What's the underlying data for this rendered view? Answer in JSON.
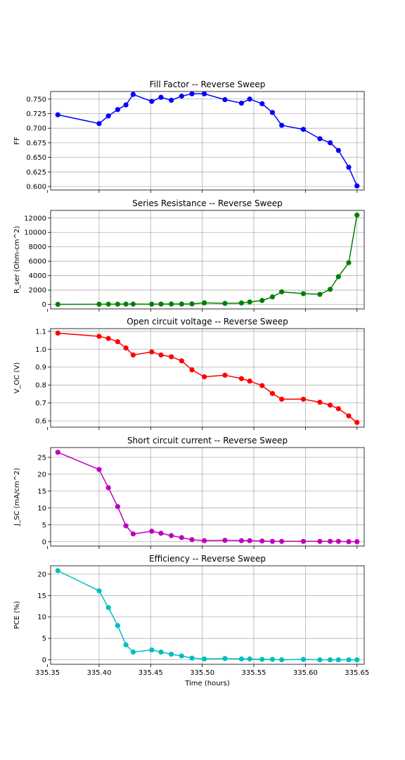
{
  "chart_data": [
    {
      "type": "line",
      "title": "Fill Factor -- Reverse Sweep",
      "ylabel": "FF",
      "xlabel": "",
      "color": "#0000ff",
      "xlim": [
        335.353,
        335.657
      ],
      "ylim": [
        0.594,
        0.763
      ],
      "xticks": [
        335.35,
        335.4,
        335.45,
        335.5,
        335.55,
        335.6,
        335.65
      ],
      "yticks": [
        0.6,
        0.625,
        0.65,
        0.675,
        0.7,
        0.725,
        0.75
      ],
      "ytick_labels": [
        "0.600",
        "0.625",
        "0.650",
        "0.675",
        "0.700",
        "0.725",
        "0.750"
      ],
      "grid": true,
      "show_xtick_labels": false,
      "x": [
        335.36,
        335.4,
        335.409,
        335.418,
        335.426,
        335.433,
        335.451,
        335.46,
        335.47,
        335.48,
        335.49,
        335.502,
        335.522,
        335.538,
        335.546,
        335.558,
        335.568,
        335.577,
        335.598,
        335.614,
        335.624,
        335.632,
        335.642,
        335.65
      ],
      "y": [
        0.723,
        0.708,
        0.721,
        0.732,
        0.74,
        0.758,
        0.746,
        0.753,
        0.748,
        0.755,
        0.759,
        0.759,
        0.749,
        0.743,
        0.75,
        0.742,
        0.727,
        0.705,
        0.698,
        0.682,
        0.675,
        0.662,
        0.633,
        0.601
      ]
    },
    {
      "type": "line",
      "title": "Series Resistance -- Reverse Sweep",
      "ylabel": "R_ser (Ohm-cm^2)",
      "xlabel": "",
      "color": "#008000",
      "xlim": [
        335.353,
        335.657
      ],
      "ylim": [
        -620,
        13050
      ],
      "xticks": [
        335.35,
        335.4,
        335.45,
        335.5,
        335.55,
        335.6,
        335.65
      ],
      "yticks": [
        0,
        2000,
        4000,
        6000,
        8000,
        10000,
        12000
      ],
      "ytick_labels": [
        "0",
        "2000",
        "4000",
        "6000",
        "8000",
        "10000",
        "12000"
      ],
      "grid": true,
      "show_xtick_labels": false,
      "x": [
        335.36,
        335.4,
        335.409,
        335.418,
        335.426,
        335.433,
        335.451,
        335.46,
        335.47,
        335.48,
        335.49,
        335.502,
        335.522,
        335.538,
        335.546,
        335.558,
        335.568,
        335.577,
        335.598,
        335.614,
        335.624,
        335.632,
        335.642,
        335.65
      ],
      "y": [
        20,
        30,
        40,
        40,
        50,
        50,
        40,
        50,
        60,
        60,
        80,
        220,
        150,
        200,
        350,
        550,
        1050,
        1750,
        1500,
        1400,
        2100,
        3850,
        5800,
        12400
      ]
    },
    {
      "type": "line",
      "title": "Open circuit voltage -- Reverse Sweep",
      "ylabel": "V_OC (V)",
      "xlabel": "",
      "color": "#ff0000",
      "xlim": [
        335.353,
        335.657
      ],
      "ylim": [
        0.565,
        1.115
      ],
      "xticks": [
        335.35,
        335.4,
        335.45,
        335.5,
        335.55,
        335.6,
        335.65
      ],
      "yticks": [
        0.6,
        0.7,
        0.8,
        0.9,
        1.0,
        1.1
      ],
      "ytick_labels": [
        "0.6",
        "0.7",
        "0.8",
        "0.9",
        "1.0",
        "1.1"
      ],
      "grid": true,
      "show_xtick_labels": false,
      "x": [
        335.36,
        335.4,
        335.409,
        335.418,
        335.426,
        335.433,
        335.451,
        335.46,
        335.47,
        335.48,
        335.49,
        335.502,
        335.522,
        335.538,
        335.546,
        335.558,
        335.568,
        335.577,
        335.598,
        335.614,
        335.624,
        335.632,
        335.642,
        335.65
      ],
      "y": [
        1.09,
        1.072,
        1.06,
        1.042,
        1.007,
        0.968,
        0.985,
        0.968,
        0.958,
        0.935,
        0.885,
        0.846,
        0.855,
        0.836,
        0.822,
        0.797,
        0.753,
        0.721,
        0.721,
        0.704,
        0.688,
        0.668,
        0.628,
        0.591
      ]
    },
    {
      "type": "line",
      "title": "Short circuit current -- Reverse Sweep",
      "ylabel": "J_SC (mA/cm^2)",
      "xlabel": "",
      "color": "#bf00bf",
      "xlim": [
        335.353,
        335.657
      ],
      "ylim": [
        -1.3,
        27.9
      ],
      "xticks": [
        335.35,
        335.4,
        335.45,
        335.5,
        335.55,
        335.6,
        335.65
      ],
      "yticks": [
        0,
        5,
        10,
        15,
        20,
        25
      ],
      "ytick_labels": [
        "0",
        "5",
        "10",
        "15",
        "20",
        "25"
      ],
      "grid": true,
      "show_xtick_labels": false,
      "x": [
        335.36,
        335.4,
        335.409,
        335.418,
        335.426,
        335.433,
        335.451,
        335.46,
        335.47,
        335.48,
        335.49,
        335.502,
        335.522,
        335.538,
        335.546,
        335.558,
        335.568,
        335.577,
        335.598,
        335.614,
        335.624,
        335.632,
        335.642,
        335.65
      ],
      "y": [
        26.5,
        21.4,
        16.0,
        10.4,
        4.7,
        2.3,
        3.1,
        2.5,
        1.8,
        1.2,
        0.6,
        0.3,
        0.4,
        0.3,
        0.3,
        0.2,
        0.1,
        0.1,
        0.1,
        0.1,
        0.1,
        0.1,
        0.0,
        0.0
      ]
    },
    {
      "type": "line",
      "title": "Efficiency -- Reverse Sweep",
      "ylabel": "PCE (%)",
      "xlabel": "Time (hours)",
      "color": "#00bfbf",
      "xlim": [
        335.353,
        335.657
      ],
      "ylim": [
        -1.05,
        21.95
      ],
      "xticks": [
        335.35,
        335.4,
        335.45,
        335.5,
        335.55,
        335.6,
        335.65
      ],
      "xtick_labels": [
        "335.35",
        "335.40",
        "335.45",
        "335.50",
        "335.55",
        "335.60",
        "335.65"
      ],
      "yticks": [
        0,
        5,
        10,
        15,
        20
      ],
      "ytick_labels": [
        "0",
        "5",
        "10",
        "15",
        "20"
      ],
      "grid": true,
      "show_xtick_labels": true,
      "x": [
        335.36,
        335.4,
        335.409,
        335.418,
        335.426,
        335.433,
        335.451,
        335.46,
        335.47,
        335.48,
        335.49,
        335.502,
        335.522,
        335.538,
        335.546,
        335.558,
        335.568,
        335.577,
        335.598,
        335.614,
        335.624,
        335.632,
        335.642,
        335.65
      ],
      "y": [
        20.8,
        16.1,
        12.2,
        8.0,
        3.5,
        1.8,
        2.3,
        1.8,
        1.3,
        0.9,
        0.4,
        0.2,
        0.3,
        0.2,
        0.2,
        0.1,
        0.1,
        0.0,
        0.1,
        0.0,
        0.0,
        0.0,
        0.0,
        0.0
      ]
    }
  ]
}
